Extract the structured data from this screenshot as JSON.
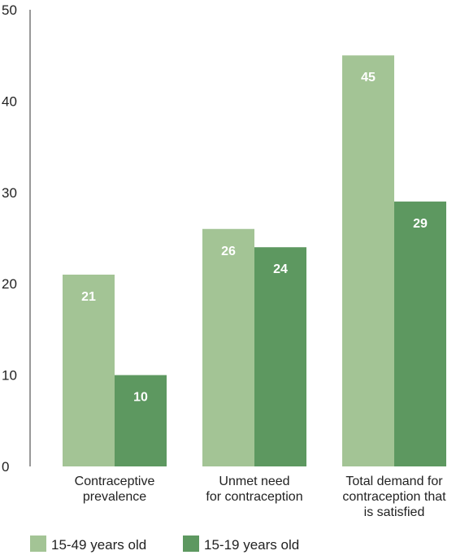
{
  "chart_data": {
    "type": "bar",
    "title": "",
    "xlabel": "",
    "ylabel": "",
    "ylim": [
      0,
      50
    ],
    "yticks": [
      0,
      10,
      20,
      30,
      40,
      50
    ],
    "grid": false,
    "legend_position": "bottom-left",
    "categories": [
      [
        "Contraceptive",
        "prevalence"
      ],
      [
        "Unmet need",
        "for contraception"
      ],
      [
        "Total demand for",
        "contraception that",
        "is satisfied"
      ]
    ],
    "series": [
      {
        "name": "15-49 years old",
        "color": "#a3c495",
        "values": [
          21,
          26,
          45
        ]
      },
      {
        "name": "15-19 years old",
        "color": "#5d9860",
        "values": [
          10,
          24,
          29
        ]
      }
    ]
  }
}
